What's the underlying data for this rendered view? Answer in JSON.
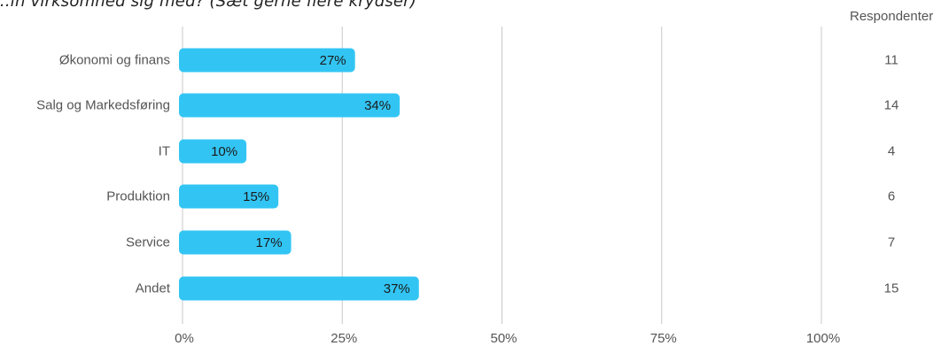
{
  "chart_data": {
    "type": "bar",
    "orientation": "horizontal",
    "title": "...in virksomhed sig med? (Sæt gerne flere krydser)",
    "categories": [
      "Økonomi og finans",
      "Salg og Markedsføring",
      "IT",
      "Produktion",
      "Service",
      "Andet"
    ],
    "values": [
      27,
      34,
      10,
      15,
      17,
      37
    ],
    "value_labels": [
      "27%",
      "34%",
      "10%",
      "15%",
      "17%",
      "37%"
    ],
    "respondents_header": "Respondenter",
    "respondents": [
      "11",
      "14",
      "4",
      "6",
      "7",
      "15"
    ],
    "xlim": [
      0,
      100
    ],
    "xticks": [
      "0%",
      "25%",
      "50%",
      "75%",
      "100%"
    ],
    "grid": true,
    "colors": {
      "bar": "#32C5F4",
      "grid": "#C8C8C8",
      "text": "#555555",
      "value_text": "#1A1A1A"
    }
  }
}
